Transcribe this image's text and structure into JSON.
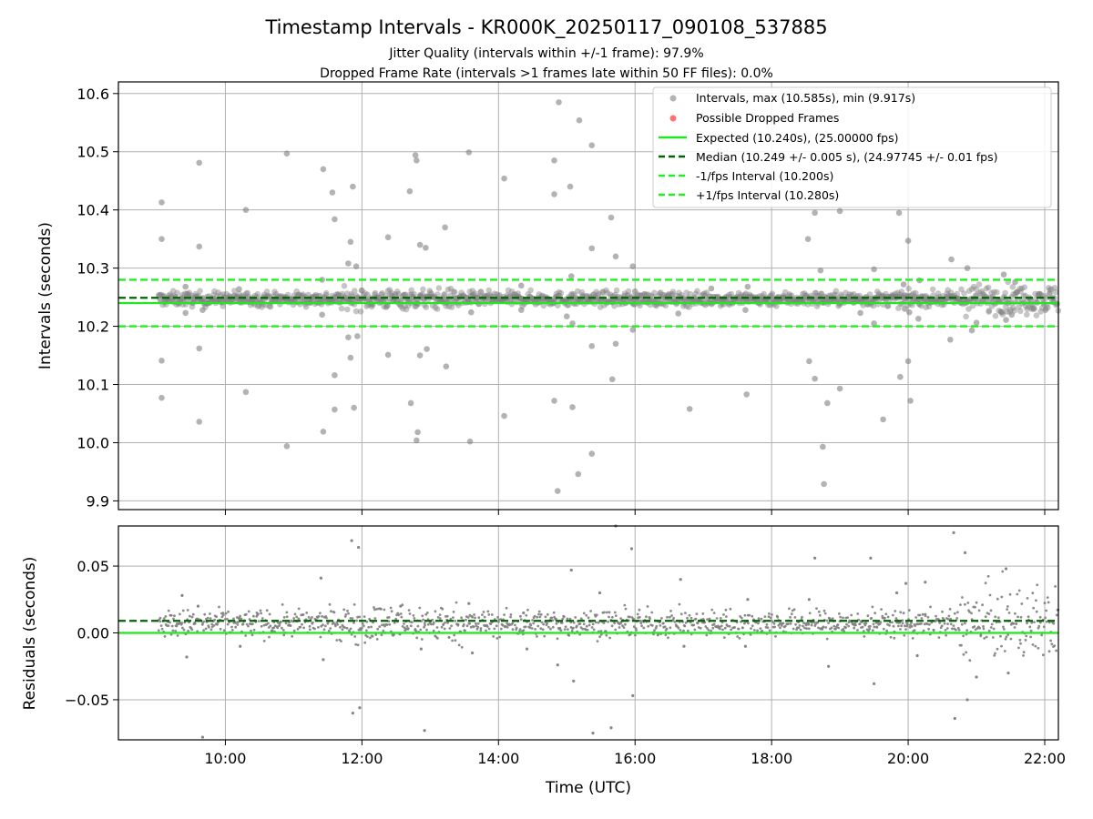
{
  "header": {
    "title": "Timestamp Intervals - KR000K_20250117_090108_537885",
    "subtitle_line1": "Jitter Quality (intervals within +/-1 frame): 97.9%",
    "subtitle_line2": "Dropped Frame Rate (intervals >1 frames late within 50 FF files): 0.0%"
  },
  "colors": {
    "points": "#808080",
    "dropped": "#ff4d4d",
    "expected": "#1ee81e",
    "median": "#006400",
    "fps_interval": "#22ee22",
    "grid": "#b0b0b0"
  },
  "chart_data": [
    {
      "type": "scatter",
      "xlabel": "",
      "ylabel": "Intervals (seconds)",
      "xlim": [
        "08:26",
        "22:12"
      ],
      "ylim": [
        9.885,
        10.62
      ],
      "grid": true,
      "legend_position": "top-right",
      "x_ticks": [
        "10:00",
        "12:00",
        "14:00",
        "16:00",
        "18:00",
        "20:00",
        "22:00"
      ],
      "y_ticks": [
        9.9,
        10.0,
        10.1,
        10.2,
        10.3,
        10.4,
        10.5,
        10.6
      ],
      "y_tick_labels": [
        "9.9",
        "10.0",
        "10.1",
        "10.2",
        "10.3",
        "10.4",
        "10.5",
        "10.6"
      ],
      "lines": [
        {
          "name": "Expected (10.240s), (25.00000 fps)",
          "y": 10.24,
          "style": "solid",
          "color": "#1ee81e"
        },
        {
          "name": "Median (10.249 +/- 0.005 s), (24.97745 +/- 0.01 fps)",
          "y": 10.249,
          "style": "dashed",
          "color": "#006400"
        },
        {
          "name": "-1/fps Interval (10.200s)",
          "y": 10.2,
          "style": "dashed",
          "color": "#22ee22"
        },
        {
          "name": "+1/fps Interval (10.280s)",
          "y": 10.28,
          "style": "dashed",
          "color": "#22ee22"
        }
      ],
      "series": [
        {
          "name": "Intervals, max (10.585s), min (9.917s)",
          "marker": "circle",
          "color": "#808080",
          "band": {
            "x_start": "09:01",
            "x_end": "22:12",
            "center": 10.247,
            "spread": 0.006
          },
          "outliers": [
            [
              "09:04",
              10.413
            ],
            [
              "09:04",
              10.35
            ],
            [
              "09:04",
              10.141
            ],
            [
              "09:04",
              10.077
            ],
            [
              "09:25",
              10.268
            ],
            [
              "09:25",
              10.223
            ],
            [
              "09:37",
              10.481
            ],
            [
              "09:37",
              10.337
            ],
            [
              "09:37",
              10.162
            ],
            [
              "09:37",
              10.036
            ],
            [
              "09:40",
              10.228
            ],
            [
              "10:12",
              10.264
            ],
            [
              "10:18",
              10.4
            ],
            [
              "10:18",
              10.087
            ],
            [
              "10:54",
              10.497
            ],
            [
              "10:54",
              9.994
            ],
            [
              "11:25",
              10.28
            ],
            [
              "11:25",
              10.22
            ],
            [
              "11:26",
              10.47
            ],
            [
              "11:26",
              10.019
            ],
            [
              "11:34",
              10.43
            ],
            [
              "11:36",
              10.384
            ],
            [
              "11:36",
              10.116
            ],
            [
              "11:36",
              10.057
            ],
            [
              "11:48",
              10.308
            ],
            [
              "11:48",
              10.181
            ],
            [
              "11:50",
              10.345
            ],
            [
              "11:50",
              10.146
            ],
            [
              "11:52",
              10.44
            ],
            [
              "11:53",
              10.06
            ],
            [
              "11:55",
              10.303
            ],
            [
              "11:56",
              10.183
            ],
            [
              "12:23",
              10.353
            ],
            [
              "12:23",
              10.151
            ],
            [
              "12:42",
              10.432
            ],
            [
              "12:43",
              10.068
            ],
            [
              "12:47",
              10.494
            ],
            [
              "12:48",
              10.485
            ],
            [
              "12:48",
              10.004
            ],
            [
              "12:49",
              10.018
            ],
            [
              "12:51",
              10.34
            ],
            [
              "12:51",
              10.15
            ],
            [
              "12:56",
              10.335
            ],
            [
              "12:57",
              10.161
            ],
            [
              "13:13",
              10.37
            ],
            [
              "13:14",
              10.131
            ],
            [
              "13:34",
              10.499
            ],
            [
              "13:35",
              10.002
            ],
            [
              "13:36",
              10.224
            ],
            [
              "14:05",
              10.454
            ],
            [
              "14:05",
              10.046
            ],
            [
              "14:20",
              10.27
            ],
            [
              "14:20",
              10.228
            ],
            [
              "14:49",
              10.485
            ],
            [
              "14:49",
              10.427
            ],
            [
              "14:49",
              10.072
            ],
            [
              "14:52",
              9.917
            ],
            [
              "14:53",
              10.585
            ],
            [
              "15:00",
              10.217
            ],
            [
              "15:03",
              10.44
            ],
            [
              "15:04",
              10.286
            ],
            [
              "15:05",
              10.205
            ],
            [
              "15:05",
              10.061
            ],
            [
              "15:10",
              9.946
            ],
            [
              "15:11",
              10.554
            ],
            [
              "15:22",
              10.511
            ],
            [
              "15:22",
              10.334
            ],
            [
              "15:22",
              10.166
            ],
            [
              "15:22",
              9.981
            ],
            [
              "15:39",
              10.387
            ],
            [
              "15:40",
              10.109
            ],
            [
              "15:43",
              10.32
            ],
            [
              "15:43",
              10.17
            ],
            [
              "15:58",
              10.303
            ],
            [
              "15:58",
              10.194
            ],
            [
              "16:00",
              10.26
            ],
            [
              "16:38",
              10.222
            ],
            [
              "16:48",
              10.058
            ],
            [
              "17:07",
              10.265
            ],
            [
              "17:37",
              10.228
            ],
            [
              "17:38",
              10.083
            ],
            [
              "17:39",
              10.268
            ],
            [
              "18:32",
              10.35
            ],
            [
              "18:33",
              10.14
            ],
            [
              "18:38",
              10.395
            ],
            [
              "18:38",
              10.11
            ],
            [
              "18:43",
              10.296
            ],
            [
              "18:45",
              9.993
            ],
            [
              "18:46",
              9.929
            ],
            [
              "18:49",
              10.068
            ],
            [
              "19:00",
              10.093
            ],
            [
              "19:00",
              10.398
            ],
            [
              "19:18",
              10.223
            ],
            [
              "19:30",
              10.298
            ],
            [
              "19:30",
              10.205
            ],
            [
              "19:38",
              10.04
            ],
            [
              "19:52",
              10.395
            ],
            [
              "19:53",
              10.113
            ],
            [
              "19:56",
              10.272
            ],
            [
              "19:57",
              10.23
            ],
            [
              "20:00",
              10.347
            ],
            [
              "20:00",
              10.14
            ],
            [
              "20:02",
              10.072
            ],
            [
              "20:01",
              10.224
            ],
            [
              "20:09",
              10.213
            ],
            [
              "20:10",
              10.279
            ],
            [
              "20:38",
              10.315
            ],
            [
              "20:37",
              10.177
            ],
            [
              "20:52",
              10.3
            ],
            [
              "20:56",
              10.193
            ],
            [
              "21:00",
              10.206
            ],
            [
              "21:24",
              10.289
            ],
            [
              "21:26",
              10.211
            ],
            [
              "21:31",
              10.22
            ],
            [
              "21:34",
              10.276
            ]
          ]
        },
        {
          "name": "Possible Dropped Frames",
          "marker": "circle",
          "color": "#ff4d4d",
          "values": []
        }
      ]
    },
    {
      "type": "scatter",
      "xlabel": "Time (UTC)",
      "ylabel": "Residuals (seconds)",
      "xlim": [
        "08:26",
        "22:12"
      ],
      "ylim": [
        -0.08,
        0.08
      ],
      "grid": true,
      "x_ticks": [
        "10:00",
        "12:00",
        "14:00",
        "16:00",
        "18:00",
        "20:00",
        "22:00"
      ],
      "y_ticks": [
        -0.05,
        0.0,
        0.05
      ],
      "y_tick_labels": [
        "−0.05",
        "0.00",
        "0.05"
      ],
      "lines": [
        {
          "name": "",
          "y": 0.0,
          "style": "solid",
          "color": "#1ee81e"
        },
        {
          "name": "",
          "y": 0.009,
          "style": "dashed",
          "color": "#006400"
        }
      ],
      "series": [
        {
          "marker": "dot",
          "color": "#808080",
          "band": {
            "x_start": "09:01",
            "x_end": "22:12",
            "center": 0.007,
            "spread": 0.005
          },
          "outliers": [
            [
              "09:22",
              0.028
            ],
            [
              "09:26",
              -0.018
            ],
            [
              "09:40",
              -0.078
            ],
            [
              "09:36",
              0.02
            ],
            [
              "10:12",
              0.011
            ],
            [
              "10:13",
              -0.01
            ],
            [
              "11:24",
              0.041
            ],
            [
              "11:26",
              -0.02
            ],
            [
              "11:51",
              0.069
            ],
            [
              "11:52",
              -0.06
            ],
            [
              "11:57",
              0.064
            ],
            [
              "11:58",
              -0.056
            ],
            [
              "12:34",
              0.02
            ],
            [
              "12:52",
              -0.012
            ],
            [
              "12:55",
              -0.073
            ],
            [
              "13:34",
              0.022
            ],
            [
              "13:37",
              -0.015
            ],
            [
              "14:22",
              0.015
            ],
            [
              "14:25",
              -0.012
            ],
            [
              "14:52",
              -0.024
            ],
            [
              "15:04",
              0.047
            ],
            [
              "15:06",
              -0.036
            ],
            [
              "15:23",
              -0.075
            ],
            [
              "15:29",
              0.03
            ],
            [
              "15:39",
              -0.071
            ],
            [
              "15:43",
              0.08
            ],
            [
              "15:57",
              0.063
            ],
            [
              "15:58",
              -0.047
            ],
            [
              "16:40",
              0.04
            ],
            [
              "16:43",
              -0.01
            ],
            [
              "17:37",
              -0.01
            ],
            [
              "17:39",
              0.025
            ],
            [
              "18:38",
              0.056
            ],
            [
              "18:33",
              0.025
            ],
            [
              "18:50",
              -0.025
            ],
            [
              "19:27",
              0.056
            ],
            [
              "19:30",
              -0.038
            ],
            [
              "19:50",
              0.03
            ],
            [
              "19:58",
              0.037
            ],
            [
              "20:08",
              -0.017
            ],
            [
              "20:15",
              0.038
            ],
            [
              "20:40",
              0.075
            ],
            [
              "20:41",
              -0.064
            ],
            [
              "20:50",
              0.06
            ],
            [
              "20:52",
              -0.05
            ],
            [
              "21:00",
              -0.033
            ],
            [
              "21:26",
              0.048
            ],
            [
              "21:28",
              -0.03
            ]
          ]
        }
      ]
    }
  ]
}
